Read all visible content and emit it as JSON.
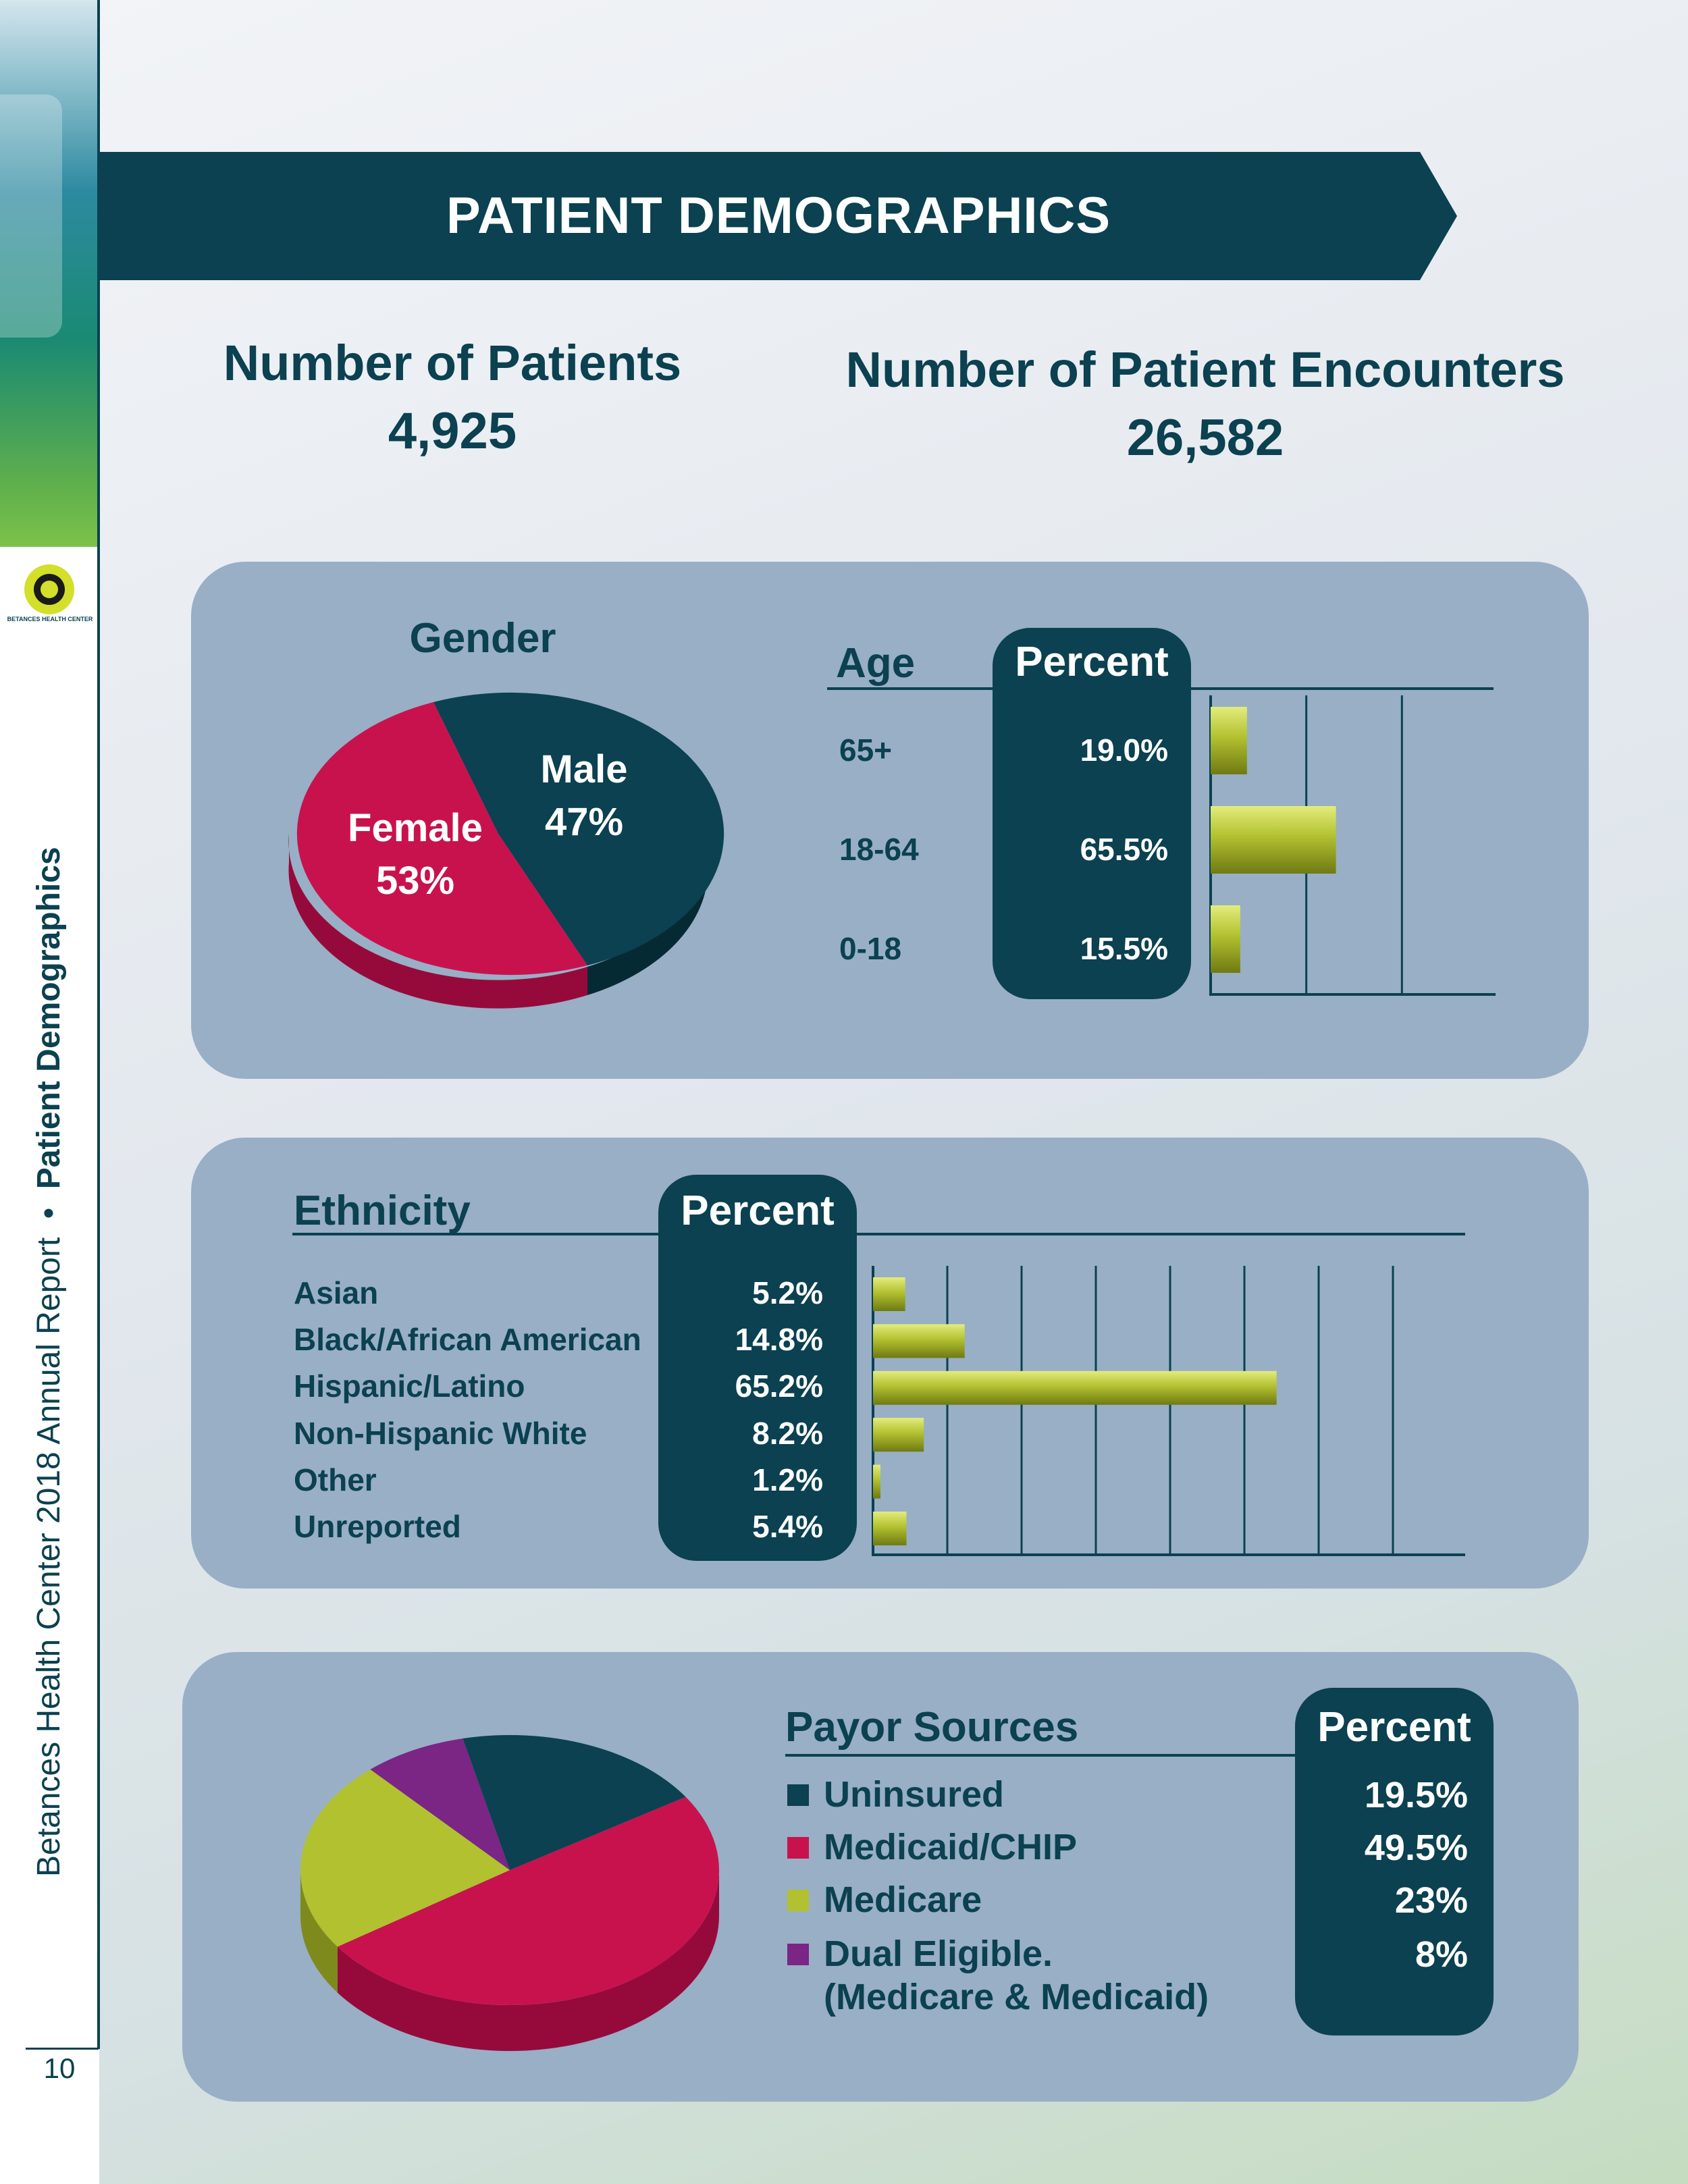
{
  "side": {
    "report_title": "Betances Health Center 2018 Annual Report",
    "separator": "•",
    "section_title": "Patient Demographics",
    "logo_text": "BETANCES HEALTH CENTER",
    "page_number": "10"
  },
  "banner": {
    "title": "PATIENT DEMOGRAPHICS"
  },
  "stats": {
    "patients_label": "Number of Patients",
    "patients_value": "4,925",
    "encounters_label": "Number of Patient Encounters",
    "encounters_value": "26,582"
  },
  "gender": {
    "title": "Gender",
    "female_label": "Female",
    "female_value": "53%",
    "male_label": "Male",
    "male_value": "47%"
  },
  "age": {
    "header": "Age",
    "percent_header": "Percent",
    "rows": [
      {
        "label": "65+",
        "value": "19.0%"
      },
      {
        "label": "18-64",
        "value": "65.5%"
      },
      {
        "label": "0-18",
        "value": "15.5%"
      }
    ]
  },
  "ethnicity": {
    "header": "Ethnicity",
    "percent_header": "Percent",
    "rows": [
      {
        "label": "Asian",
        "value": "5.2%"
      },
      {
        "label": "Black/African American",
        "value": "14.8%"
      },
      {
        "label": "Hispanic/Latino",
        "value": "65.2%"
      },
      {
        "label": "Non-Hispanic White",
        "value": "8.2%"
      },
      {
        "label": "Other",
        "value": "1.2%"
      },
      {
        "label": "Unreported",
        "value": "5.4%"
      }
    ]
  },
  "payor": {
    "header": "Payor Sources",
    "percent_header": "Percent",
    "rows": [
      {
        "label": "Uninsured",
        "value": "19.5%",
        "color": "#0b4150"
      },
      {
        "label": "Medicaid/CHIP",
        "value": "49.5%",
        "color": "#c8124e"
      },
      {
        "label": "Medicare",
        "value": "23%",
        "color": "#b2c130"
      },
      {
        "label": "Dual Eligible.",
        "label2": "(Medicare & Medicaid)",
        "value": "8%",
        "color": "#7b2585"
      }
    ]
  },
  "colors": {
    "dark_teal": "#0b4150",
    "panel": "#98afc6",
    "female": "#c8124e",
    "bar": "#b2c130"
  },
  "chart_data": [
    {
      "type": "pie",
      "title": "Gender",
      "categories": [
        "Female",
        "Male"
      ],
      "values": [
        53,
        47
      ]
    },
    {
      "type": "bar",
      "orientation": "horizontal",
      "categories": [
        "65+",
        "18-64",
        "0-18"
      ],
      "values": [
        19.0,
        65.5,
        15.5
      ],
      "xlim": [
        0,
        150
      ]
    },
    {
      "type": "bar",
      "orientation": "horizontal",
      "categories": [
        "Asian",
        "Black/African American",
        "Hispanic/Latino",
        "Non-Hispanic White",
        "Other",
        "Unreported"
      ],
      "values": [
        5.2,
        14.8,
        65.2,
        8.2,
        1.2,
        5.4
      ],
      "xlim": [
        0,
        96
      ]
    },
    {
      "type": "pie",
      "title": "Payor Sources",
      "categories": [
        "Uninsured",
        "Medicaid/CHIP",
        "Medicare",
        "Dual Eligible. (Medicare & Medicaid)"
      ],
      "values": [
        19.5,
        49.5,
        23,
        8
      ]
    }
  ]
}
